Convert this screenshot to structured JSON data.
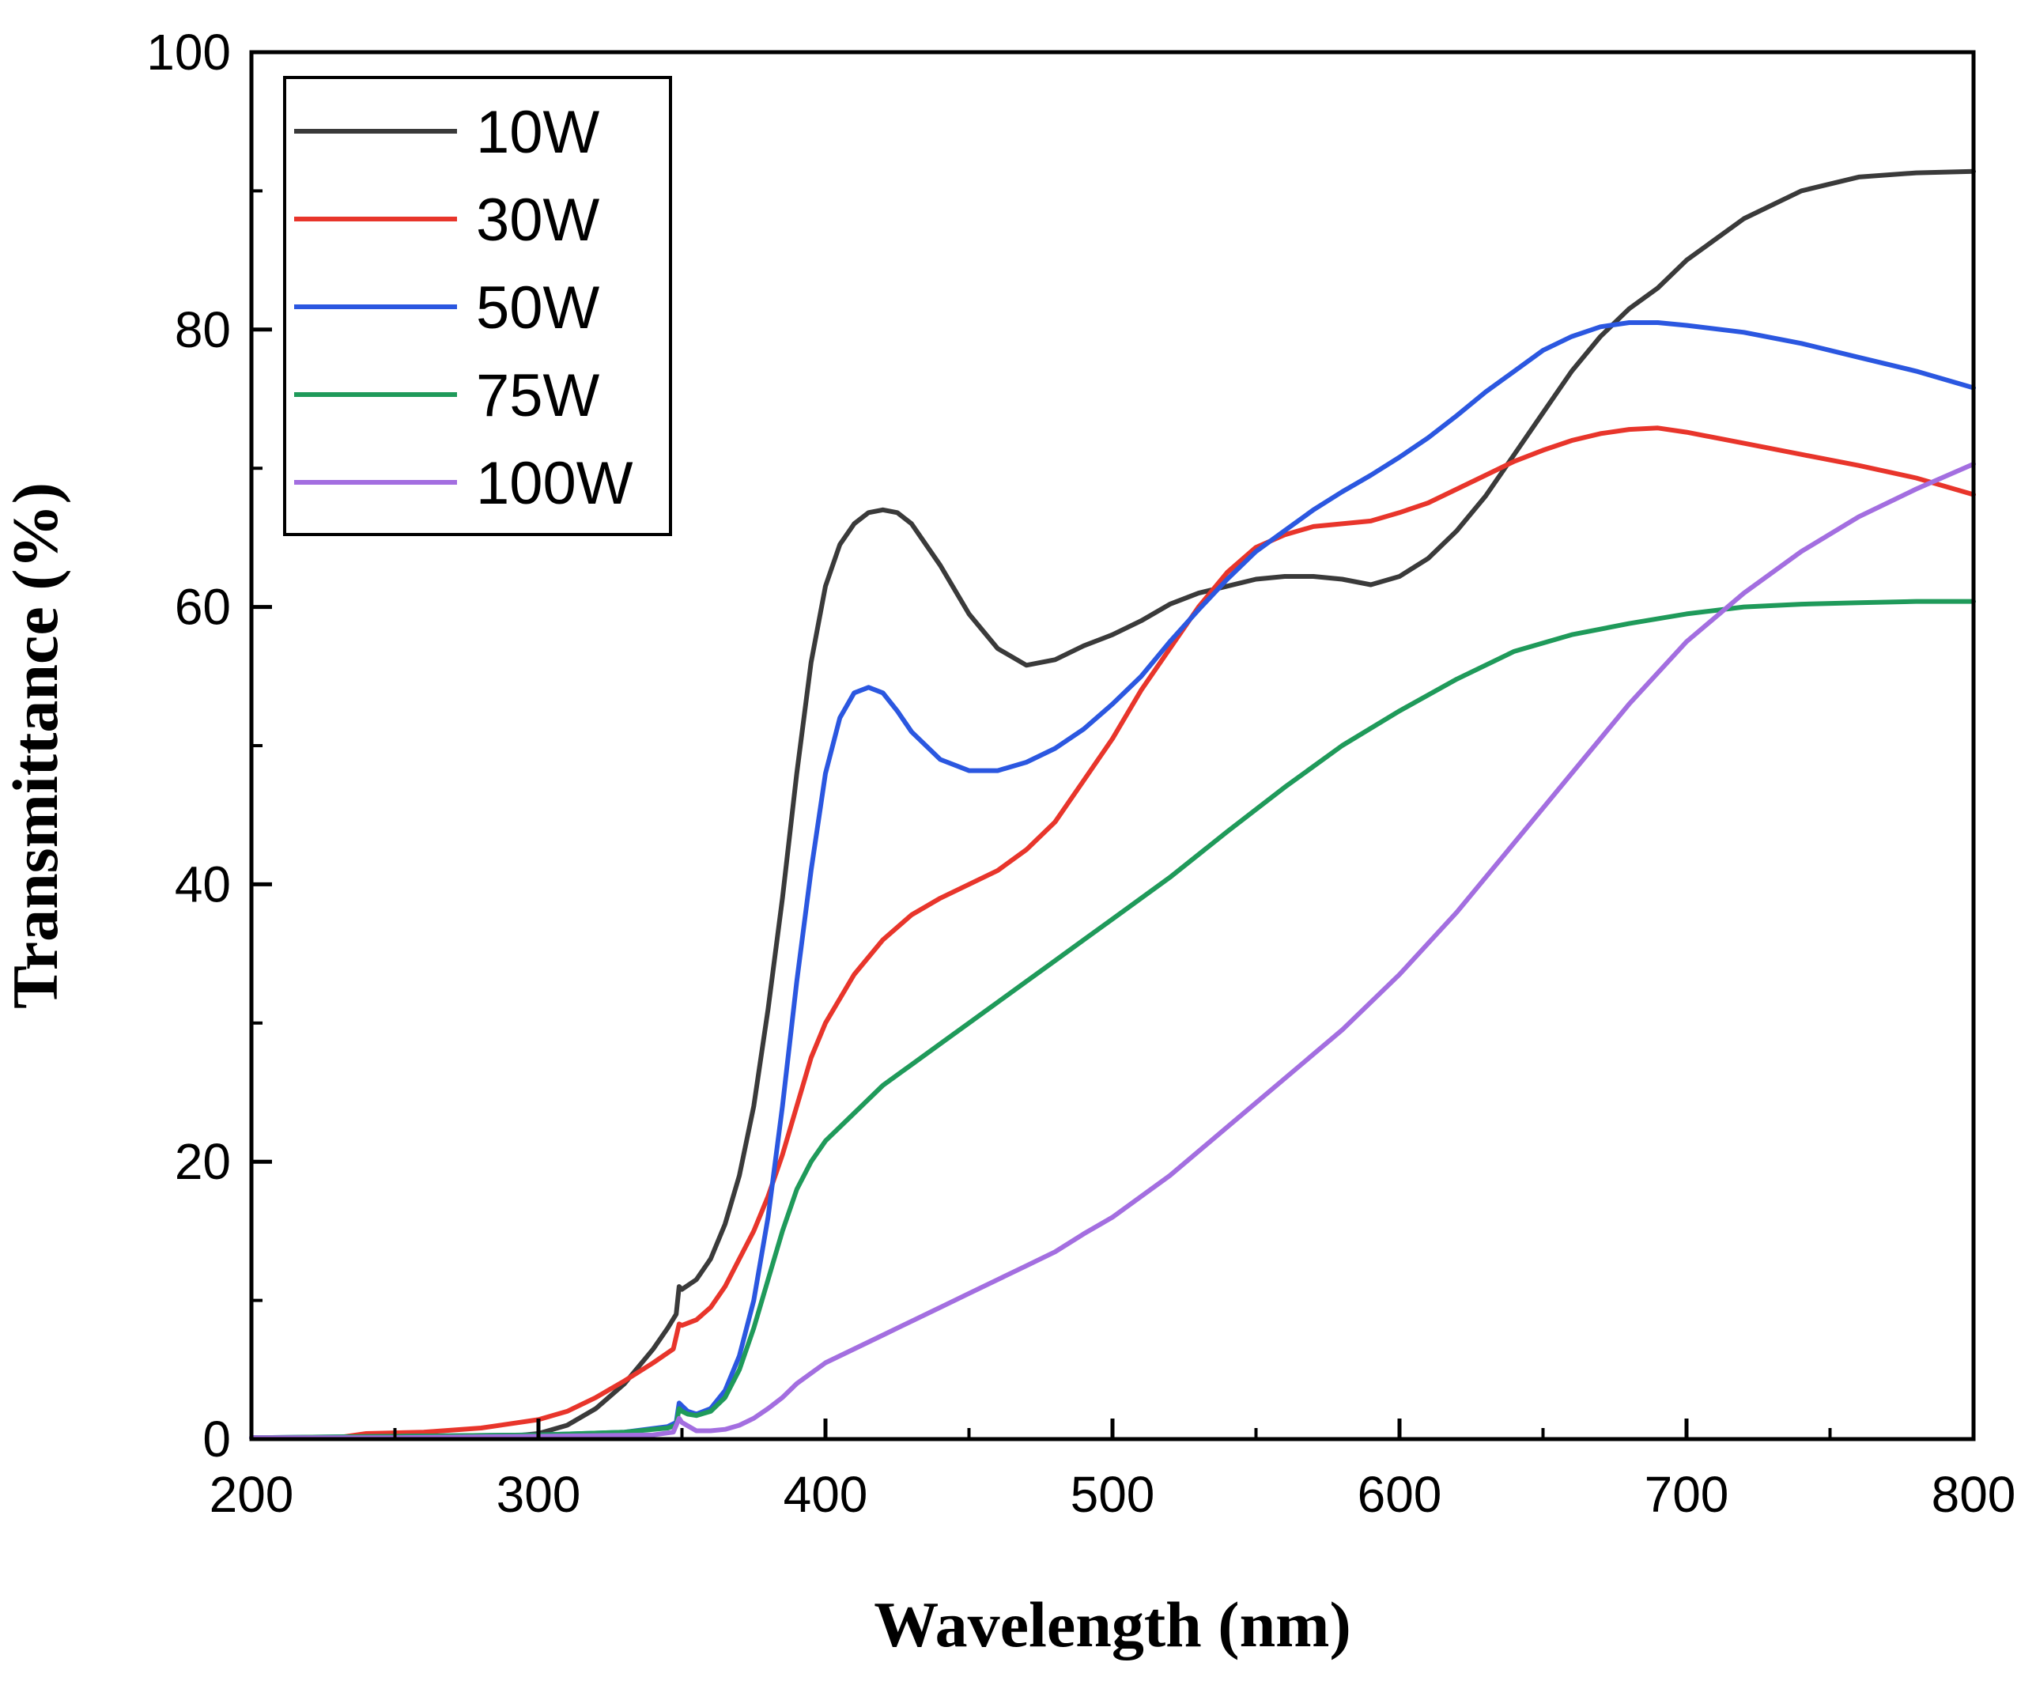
{
  "chart_data": {
    "type": "line",
    "title": "",
    "xlabel": "Wavelength (nm)",
    "ylabel": "Transmittance (%)",
    "xlim": [
      200,
      800
    ],
    "ylim": [
      0,
      100
    ],
    "xticks": [
      200,
      300,
      400,
      500,
      600,
      700,
      800
    ],
    "yticks": [
      0,
      20,
      40,
      60,
      80,
      100
    ],
    "legend_position": "top-left",
    "grid": false,
    "series": [
      {
        "name": "10W",
        "color": "#3a3a3a",
        "x": [
          200,
          230,
          260,
          290,
          300,
          310,
          320,
          330,
          340,
          345,
          348,
          349,
          350,
          355,
          360,
          365,
          370,
          375,
          380,
          385,
          390,
          395,
          400,
          405,
          410,
          415,
          420,
          425,
          430,
          440,
          450,
          460,
          470,
          480,
          490,
          500,
          510,
          520,
          530,
          540,
          550,
          560,
          570,
          580,
          590,
          600,
          610,
          620,
          630,
          640,
          650,
          660,
          670,
          680,
          690,
          700,
          720,
          740,
          760,
          780,
          800
        ],
        "y": [
          0.1,
          0.1,
          0.1,
          0.2,
          0.4,
          1.0,
          2.2,
          4.0,
          6.5,
          8.0,
          9.0,
          11.0,
          10.8,
          11.5,
          13.0,
          15.5,
          19.0,
          24.0,
          31.0,
          39.0,
          48.0,
          56.0,
          61.5,
          64.5,
          66.0,
          66.8,
          67.0,
          66.8,
          66.0,
          63.0,
          59.5,
          57.0,
          55.8,
          56.2,
          57.2,
          58.0,
          59.0,
          60.2,
          61.0,
          61.5,
          62.0,
          62.2,
          62.2,
          62.0,
          61.6,
          62.2,
          63.5,
          65.5,
          68.0,
          71.0,
          74.0,
          77.0,
          79.5,
          81.5,
          83.0,
          85.0,
          88.0,
          90.0,
          91.0,
          91.3,
          91.4
        ]
      },
      {
        "name": "30W",
        "color": "#e8352b",
        "x": [
          200,
          230,
          240,
          260,
          280,
          300,
          310,
          320,
          330,
          340,
          347,
          349,
          350,
          355,
          360,
          365,
          370,
          375,
          380,
          385,
          390,
          395,
          400,
          410,
          420,
          430,
          440,
          450,
          460,
          470,
          480,
          490,
          500,
          510,
          520,
          530,
          540,
          550,
          560,
          570,
          580,
          590,
          600,
          610,
          620,
          630,
          640,
          650,
          660,
          670,
          680,
          690,
          700,
          720,
          740,
          760,
          780,
          800
        ],
        "y": [
          0.1,
          0.1,
          0.4,
          0.5,
          0.8,
          1.4,
          2.0,
          3.0,
          4.2,
          5.5,
          6.5,
          8.3,
          8.2,
          8.6,
          9.5,
          11.0,
          13.0,
          15.0,
          17.5,
          20.5,
          24.0,
          27.5,
          30.0,
          33.5,
          36.0,
          37.8,
          39.0,
          40.0,
          41.0,
          42.5,
          44.5,
          47.5,
          50.5,
          54.0,
          57.0,
          60.0,
          62.5,
          64.3,
          65.2,
          65.8,
          66.0,
          66.2,
          66.8,
          67.5,
          68.5,
          69.5,
          70.5,
          71.3,
          72.0,
          72.5,
          72.8,
          72.9,
          72.6,
          71.8,
          71.0,
          70.2,
          69.3,
          68.1
        ]
      },
      {
        "name": "50W",
        "color": "#2b57e0",
        "x": [
          200,
          250,
          300,
          330,
          345,
          348,
          349,
          350,
          352,
          355,
          360,
          365,
          370,
          375,
          380,
          385,
          390,
          395,
          400,
          405,
          410,
          415,
          420,
          425,
          430,
          440,
          450,
          460,
          470,
          480,
          490,
          500,
          510,
          520,
          530,
          540,
          550,
          560,
          570,
          580,
          590,
          600,
          610,
          620,
          630,
          640,
          650,
          660,
          670,
          680,
          690,
          700,
          720,
          740,
          760,
          780,
          800
        ],
        "y": [
          0.1,
          0.2,
          0.3,
          0.5,
          0.9,
          1.2,
          2.6,
          2.4,
          2.0,
          1.8,
          2.2,
          3.5,
          6.0,
          10.0,
          16.0,
          24.0,
          33.0,
          41.0,
          48.0,
          52.0,
          53.8,
          54.2,
          53.8,
          52.5,
          51.0,
          49.0,
          48.2,
          48.2,
          48.8,
          49.8,
          51.2,
          53.0,
          55.0,
          57.5,
          59.8,
          62.0,
          64.0,
          65.5,
          67.0,
          68.3,
          69.5,
          70.8,
          72.2,
          73.8,
          75.5,
          77.0,
          78.5,
          79.5,
          80.2,
          80.5,
          80.5,
          80.3,
          79.8,
          79.0,
          78.0,
          77.0,
          75.8
        ]
      },
      {
        "name": "75W",
        "color": "#1f9a5a",
        "x": [
          200,
          250,
          300,
          330,
          345,
          348,
          349,
          350,
          352,
          355,
          360,
          365,
          370,
          375,
          380,
          385,
          390,
          395,
          400,
          410,
          420,
          430,
          440,
          450,
          460,
          470,
          480,
          490,
          500,
          520,
          540,
          560,
          580,
          600,
          620,
          640,
          660,
          680,
          700,
          720,
          740,
          760,
          780,
          800
        ],
        "y": [
          0.1,
          0.2,
          0.3,
          0.5,
          0.8,
          1.0,
          2.2,
          2.0,
          1.8,
          1.7,
          2.0,
          3.0,
          5.0,
          8.0,
          11.5,
          15.0,
          18.0,
          20.0,
          21.5,
          23.5,
          25.5,
          27.0,
          28.5,
          30.0,
          31.5,
          33.0,
          34.5,
          36.0,
          37.5,
          40.5,
          43.8,
          47.0,
          50.0,
          52.5,
          54.8,
          56.8,
          58.0,
          58.8,
          59.5,
          60.0,
          60.2,
          60.3,
          60.4,
          60.4
        ]
      },
      {
        "name": "100W",
        "color": "#a36ee0",
        "x": [
          200,
          250,
          300,
          340,
          347,
          349,
          350,
          355,
          360,
          365,
          370,
          375,
          380,
          385,
          390,
          400,
          410,
          420,
          430,
          440,
          450,
          460,
          470,
          480,
          490,
          500,
          520,
          540,
          560,
          580,
          600,
          620,
          640,
          660,
          680,
          700,
          720,
          740,
          760,
          780,
          800
        ],
        "y": [
          0.1,
          0.1,
          0.2,
          0.3,
          0.5,
          1.5,
          1.2,
          0.6,
          0.6,
          0.7,
          1.0,
          1.5,
          2.2,
          3.0,
          4.0,
          5.5,
          6.5,
          7.5,
          8.5,
          9.5,
          10.5,
          11.5,
          12.5,
          13.5,
          14.8,
          16.0,
          19.0,
          22.5,
          26.0,
          29.5,
          33.5,
          38.0,
          43.0,
          48.0,
          53.0,
          57.5,
          61.0,
          64.0,
          66.5,
          68.5,
          70.3
        ]
      }
    ]
  }
}
